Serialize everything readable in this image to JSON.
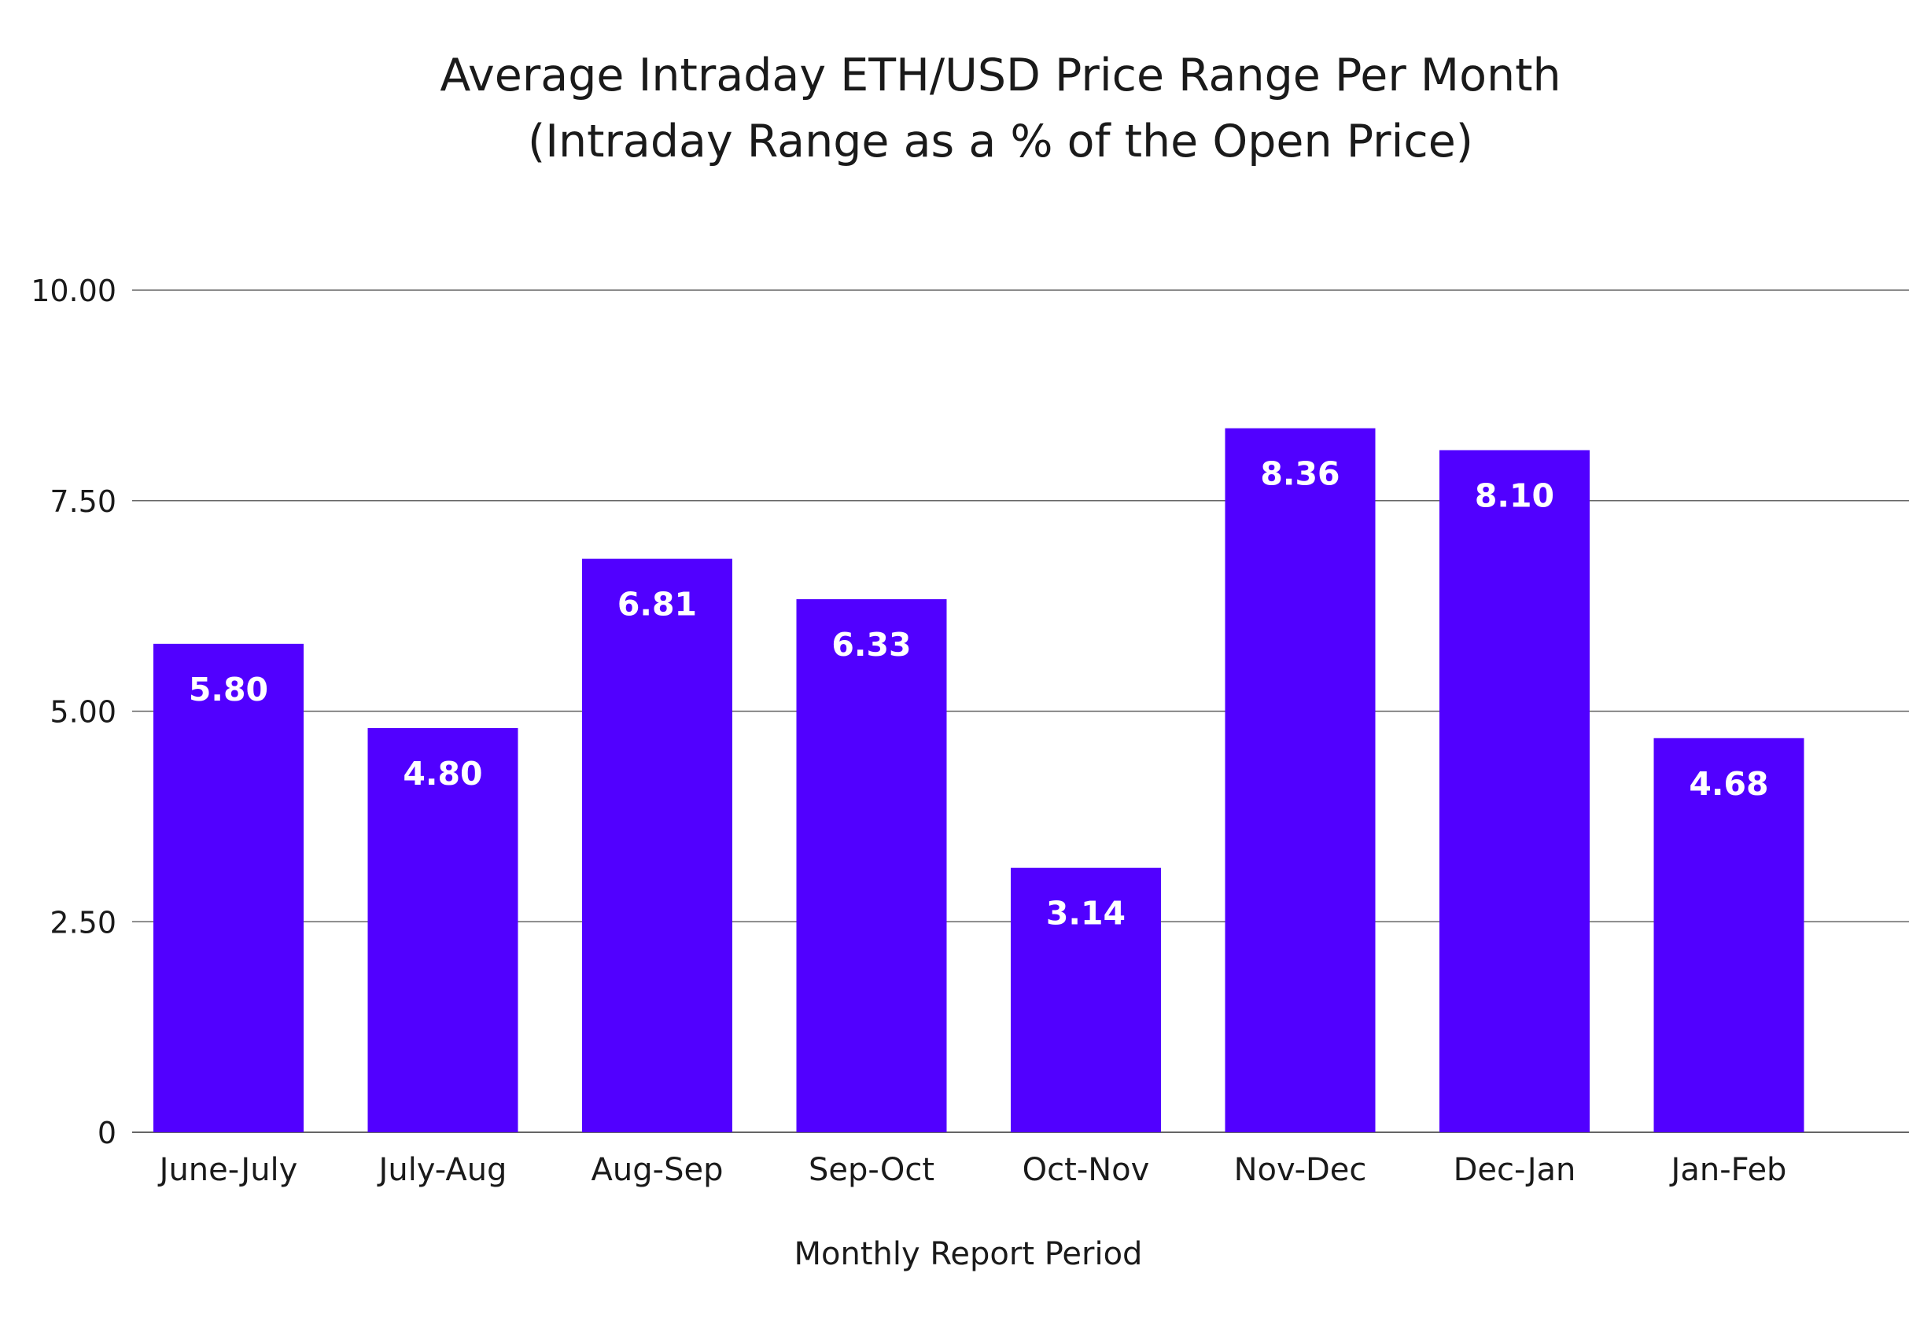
{
  "chart_data": {
    "type": "bar",
    "title": "Average Intraday ETH/USD Price Range Per Month",
    "subtitle": "(Intraday Range as a % of the Open Price)",
    "xlabel": "Monthly Report Period",
    "ylabel": "",
    "categories": [
      "June-July",
      "July-Aug",
      "Aug-Sep",
      "Sep-Oct",
      "Oct-Nov",
      "Nov-Dec",
      "Dec-Jan",
      "Jan-Feb"
    ],
    "values": [
      5.8,
      4.8,
      6.81,
      6.33,
      3.14,
      8.36,
      8.1,
      4.68
    ],
    "data_labels": [
      "5.80",
      "4.80",
      "6.81",
      "6.33",
      "3.14",
      "8.36",
      "8.10",
      "4.68"
    ],
    "ylim": [
      0,
      10
    ],
    "y_ticks": [
      0,
      2.5,
      5,
      7.5,
      10
    ],
    "y_tick_labels": [
      "0",
      "2.50",
      "5.00",
      "7.50",
      "10.00"
    ],
    "grid": true,
    "legend": "none",
    "bar_color": "#5100FF",
    "label_color": "#FFFFFF"
  }
}
